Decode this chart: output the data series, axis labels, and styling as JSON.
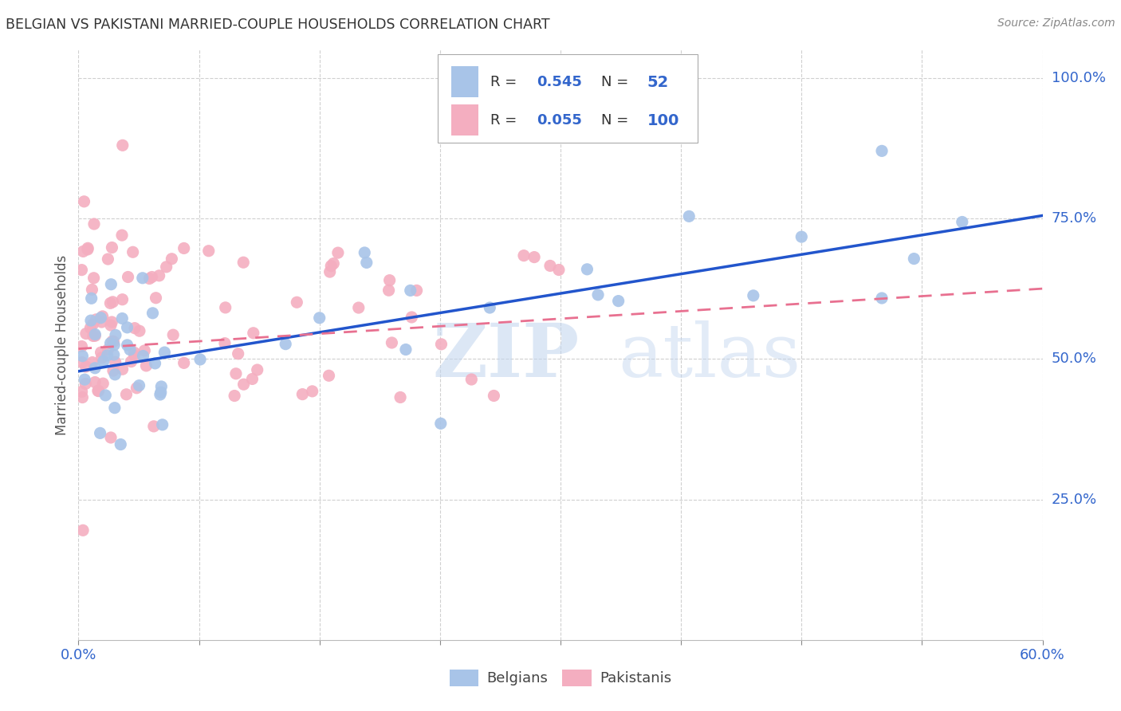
{
  "title": "BELGIAN VS PAKISTANI MARRIED-COUPLE HOUSEHOLDS CORRELATION CHART",
  "source": "Source: ZipAtlas.com",
  "ylabel": "Married-couple Households",
  "xlim": [
    0.0,
    0.6
  ],
  "ylim": [
    0.0,
    1.05
  ],
  "xtick_positions": [
    0.0,
    0.075,
    0.15,
    0.225,
    0.3,
    0.375,
    0.45,
    0.525,
    0.6
  ],
  "ytick_positions": [
    0.25,
    0.5,
    0.75,
    1.0
  ],
  "ytick_labels": [
    "25.0%",
    "50.0%",
    "75.0%",
    "100.0%"
  ],
  "legend_blue_r": "0.545",
  "legend_blue_n": "52",
  "legend_pink_r": "0.055",
  "legend_pink_n": "100",
  "blue_color": "#a8c4e8",
  "pink_color": "#f4aec0",
  "blue_line_color": "#2255cc",
  "pink_line_color": "#e87090",
  "background_color": "#ffffff",
  "grid_color": "#d0d0d0",
  "blue_trend_x0": 0.0,
  "blue_trend_y0": 0.478,
  "blue_trend_x1": 0.6,
  "blue_trend_y1": 0.755,
  "pink_trend_x0": 0.0,
  "pink_trend_y0": 0.518,
  "pink_trend_x1": 0.6,
  "pink_trend_y1": 0.625,
  "watermark_zip_color": "#c0d4ee",
  "watermark_atlas_color": "#c0d4ee"
}
